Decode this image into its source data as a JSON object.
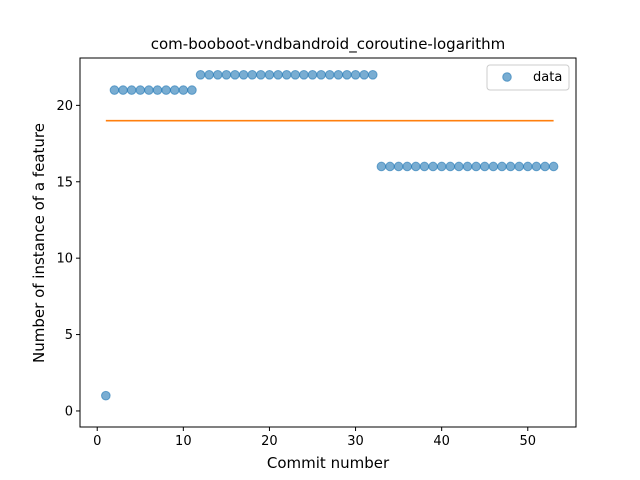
{
  "chart_data": {
    "type": "scatter",
    "title": "com-booboot-vndbandroid_coroutine-logarithm",
    "xlabel": "Commit number",
    "ylabel": "Number of instance of a feature",
    "xlim": [
      -2,
      55.6
    ],
    "ylim": [
      -1.05,
      23.1
    ],
    "xticks": [
      0,
      10,
      20,
      30,
      40,
      50
    ],
    "yticks": [
      0,
      5,
      10,
      15,
      20
    ],
    "grid": false,
    "legend_position": "top-right",
    "colors": {
      "data": "#1f77b4",
      "fit": "#ff7f0e"
    },
    "series": [
      {
        "name": "data",
        "x": [
          1,
          2,
          3,
          4,
          5,
          6,
          7,
          8,
          9,
          10,
          11,
          12,
          13,
          14,
          15,
          16,
          17,
          18,
          19,
          20,
          21,
          22,
          23,
          24,
          25,
          26,
          27,
          28,
          29,
          30,
          31,
          32,
          33,
          34,
          35,
          36,
          37,
          38,
          39,
          40,
          41,
          42,
          43,
          44,
          45,
          46,
          47,
          48,
          49,
          50,
          51,
          52,
          53
        ],
        "y": [
          1,
          21,
          21,
          21,
          21,
          21,
          21,
          21,
          21,
          21,
          21,
          22,
          22,
          22,
          22,
          22,
          22,
          22,
          22,
          22,
          22,
          22,
          22,
          22,
          22,
          22,
          22,
          22,
          22,
          22,
          22,
          22,
          16,
          16,
          16,
          16,
          16,
          16,
          16,
          16,
          16,
          16,
          16,
          16,
          16,
          16,
          16,
          16,
          16,
          16,
          16,
          16,
          16
        ]
      },
      {
        "x": [
          1,
          53
        ],
        "y": [
          19,
          19
        ]
      }
    ]
  }
}
